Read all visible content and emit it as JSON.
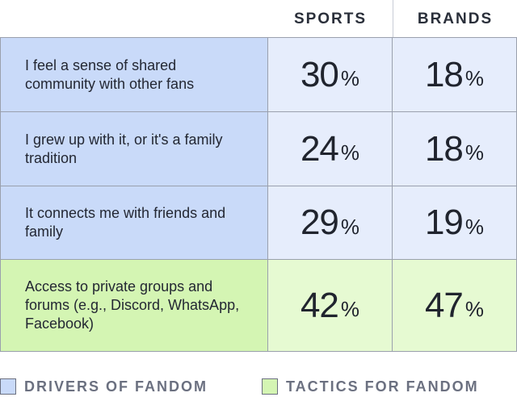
{
  "chart_data": {
    "type": "table",
    "columns": [
      "SPORTS",
      "BRANDS"
    ],
    "rows": [
      {
        "label": "I feel a sense of shared community with other fans",
        "category": "drivers",
        "values": [
          30,
          18
        ]
      },
      {
        "label": "I grew up with it, or it's a family tradition",
        "category": "drivers",
        "values": [
          24,
          18
        ]
      },
      {
        "label": "It connects me with friends and family",
        "category": "drivers",
        "values": [
          29,
          19
        ]
      },
      {
        "label": "Access to private groups and forums (e.g., Discord, WhatsApp, Facebook)",
        "category": "tactics",
        "values": [
          42,
          47
        ]
      }
    ],
    "unit": "%",
    "legend": [
      {
        "label": "DRIVERS OF FANDOM",
        "color": "#c9daf9"
      },
      {
        "label": "TACTICS FOR FANDOM",
        "color": "#d4f5b3"
      }
    ],
    "legend_placement": "bottom"
  }
}
